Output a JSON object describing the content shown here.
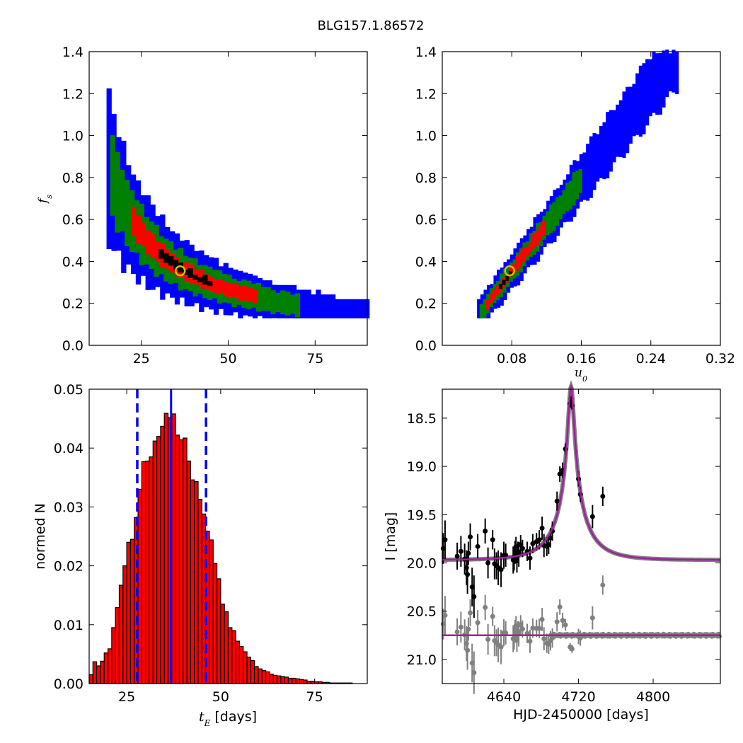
{
  "figure": {
    "title": "BLG157.1.86572"
  },
  "colors": {
    "blue": "#0000ff",
    "green": "#008000",
    "red": "#ff0000",
    "black": "#000000",
    "best": "#c8c800",
    "gray": "#808080",
    "model": "#a020a0"
  },
  "chart_data": [
    {
      "id": "fs_vs_tE",
      "type": "heatmap",
      "ylabel": "f_s",
      "xlabel": "",
      "xlim": [
        10,
        90
      ],
      "ylim": [
        0,
        1.4
      ],
      "xticks": [
        25,
        50,
        75
      ],
      "xtick_labels": [
        "25",
        "50",
        "75"
      ],
      "yticks": [
        0,
        0.2,
        0.4,
        0.6,
        0.8,
        1.0,
        1.2,
        1.4
      ],
      "ytick_labels": [
        "0.0",
        "0.2",
        "0.4",
        "0.6",
        "0.8",
        "1.0",
        "1.2",
        "1.4"
      ],
      "curve": {
        "form": "fs = k / tE",
        "k": 12.9
      },
      "bands": [
        {
          "level": "3sigma",
          "color": "blue",
          "width": 0.14
        },
        {
          "level": "2sigma",
          "color": "green",
          "width": 0.08
        },
        {
          "level": "1sigma",
          "color": "red",
          "width": 0.035
        },
        {
          "level": "best",
          "color": "black",
          "width": 0.012
        }
      ],
      "band_extent": {
        "3sigma": [
          15,
          90
        ],
        "2sigma": [
          16,
          70
        ],
        "1sigma": [
          22,
          57
        ],
        "best": [
          30,
          44
        ]
      },
      "best_fit": {
        "x": 36.2,
        "y": 0.355
      }
    },
    {
      "id": "fs_vs_u0",
      "type": "heatmap",
      "ylabel": "",
      "xlabel": "u_0",
      "xlim": [
        0,
        0.32
      ],
      "ylim": [
        0,
        1.4
      ],
      "xticks": [
        0.08,
        0.16,
        0.24,
        0.32
      ],
      "xtick_labels": [
        "0.08",
        "0.16",
        "0.24",
        "0.32"
      ],
      "yticks": [
        0,
        0.2,
        0.4,
        0.6,
        0.8,
        1.0,
        1.2,
        1.4
      ],
      "ytick_labels": [
        "0.0",
        "0.2",
        "0.4",
        "0.6",
        "0.8",
        "1.0",
        "1.2",
        "1.4"
      ],
      "curve": {
        "form": "fs = a * u0 + b",
        "a": 5.5,
        "b": -0.08
      },
      "band_extent": {
        "3sigma": [
          0.04,
          0.27
        ],
        "2sigma": [
          0.043,
          0.16
        ],
        "1sigma": [
          0.05,
          0.115
        ],
        "best": [
          0.065,
          0.08
        ]
      },
      "best_fit": {
        "x": 0.0775,
        "y": 0.355
      }
    },
    {
      "id": "tE_histogram",
      "type": "bar",
      "xlabel": "t_E  [days]",
      "ylabel": "normed N",
      "xlim": [
        15,
        89
      ],
      "ylim": [
        0,
        0.05
      ],
      "xticks": [
        25,
        50,
        75
      ],
      "xtick_labels": [
        "25",
        "50",
        "75"
      ],
      "yticks": [
        0,
        0.01,
        0.02,
        0.03,
        0.04,
        0.05
      ],
      "ytick_labels": [
        "0.00",
        "0.01",
        "0.02",
        "0.03",
        "0.04",
        "0.05"
      ],
      "bin_start": 15,
      "bin_width": 1,
      "values": [
        0.0015,
        0.0037,
        0.003,
        0.0038,
        0.0052,
        0.0059,
        0.0095,
        0.0129,
        0.0167,
        0.02,
        0.024,
        0.0245,
        0.0282,
        0.033,
        0.0377,
        0.0378,
        0.0385,
        0.0412,
        0.042,
        0.0437,
        0.0459,
        0.0452,
        0.0458,
        0.0422,
        0.0414,
        0.0417,
        0.0378,
        0.0346,
        0.0343,
        0.0313,
        0.0288,
        0.0259,
        0.0244,
        0.0204,
        0.0178,
        0.0135,
        0.0122,
        0.0095,
        0.009,
        0.0072,
        0.0063,
        0.0054,
        0.0045,
        0.0039,
        0.0029,
        0.0025,
        0.0022,
        0.002,
        0.0016,
        0.0014,
        0.0013,
        0.0012,
        0.0011,
        0.0009,
        0.0009,
        0.0008,
        0.0007,
        0.0006,
        0.0004,
        0.0004,
        0.0003,
        0.0003,
        0.0002,
        0.0002,
        0.0001,
        0.0001,
        0.0001,
        0.0001,
        0.0001,
        0.0001,
        0.0,
        0.0,
        0.0,
        0.0
      ],
      "median": 36.8,
      "lower": 27.8,
      "upper": 46.1
    },
    {
      "id": "lightcurve",
      "type": "scatter",
      "xlabel": "HJD-2450000 [days]",
      "ylabel": "I [mag]",
      "xlim": [
        4574,
        4872
      ],
      "ylim": [
        21.25,
        18.2
      ],
      "xticks": [
        4640,
        4720,
        4800
      ],
      "xtick_labels": [
        "4640",
        "4720",
        "4800"
      ],
      "yticks": [
        18.5,
        19.0,
        19.5,
        20.0,
        20.5,
        21.0
      ],
      "ytick_labels": [
        "18.5",
        "19.0",
        "19.5",
        "20.0",
        "20.5",
        "21.0"
      ],
      "model": {
        "t0": 4712,
        "tE": 36.2,
        "u0": 0.0775,
        "fs": 0.355,
        "baseline": 19.97
      },
      "residual_offset": 20.75,
      "series": [
        {
          "role": "data",
          "x": [
            4575,
            4577,
            4590,
            4594,
            4598,
            4600,
            4601,
            4602,
            4604,
            4606,
            4608,
            4612,
            4620,
            4623,
            4628,
            4630,
            4632,
            4634,
            4637,
            4640,
            4642,
            4650,
            4651,
            4652,
            4653,
            4654,
            4655,
            4656,
            4658,
            4660,
            4665,
            4668,
            4671,
            4675,
            4678,
            4681,
            4683,
            4686,
            4688,
            4690,
            4692,
            4697,
            4700,
            4703,
            4706,
            4711,
            4712,
            4713,
            4720,
            4722,
            4735,
            4746
          ],
          "y": [
            19.85,
            19.76,
            19.93,
            19.88,
            19.96,
            20.05,
            20.12,
            19.9,
            19.73,
            20.25,
            20.35,
            19.83,
            19.67,
            20.0,
            19.76,
            20.01,
            20.03,
            20.05,
            20.07,
            19.92,
            19.92,
            19.97,
            19.96,
            19.89,
            19.83,
            19.98,
            19.88,
            19.91,
            19.81,
            19.85,
            19.88,
            19.95,
            19.8,
            19.78,
            19.76,
            19.64,
            19.82,
            19.83,
            19.81,
            19.74,
            19.67,
            19.36,
            19.08,
            19.04,
            18.82,
            18.35,
            18.3,
            18.37,
            19.13,
            19.29,
            19.52,
            19.31
          ],
          "err": [
            0.16,
            0.2,
            0.14,
            0.16,
            0.16,
            0.18,
            0.2,
            0.12,
            0.14,
            0.2,
            0.22,
            0.13,
            0.13,
            0.16,
            0.1,
            0.16,
            0.14,
            0.18,
            0.18,
            0.14,
            0.12,
            0.14,
            0.12,
            0.12,
            0.1,
            0.12,
            0.1,
            0.13,
            0.1,
            0.09,
            0.1,
            0.12,
            0.1,
            0.09,
            0.1,
            0.12,
            0.12,
            0.1,
            0.1,
            0.1,
            0.1,
            0.1,
            0.08,
            0.08,
            0.06,
            0.04,
            0.03,
            0.04,
            0.08,
            0.08,
            0.12,
            0.1
          ]
        }
      ]
    }
  ]
}
